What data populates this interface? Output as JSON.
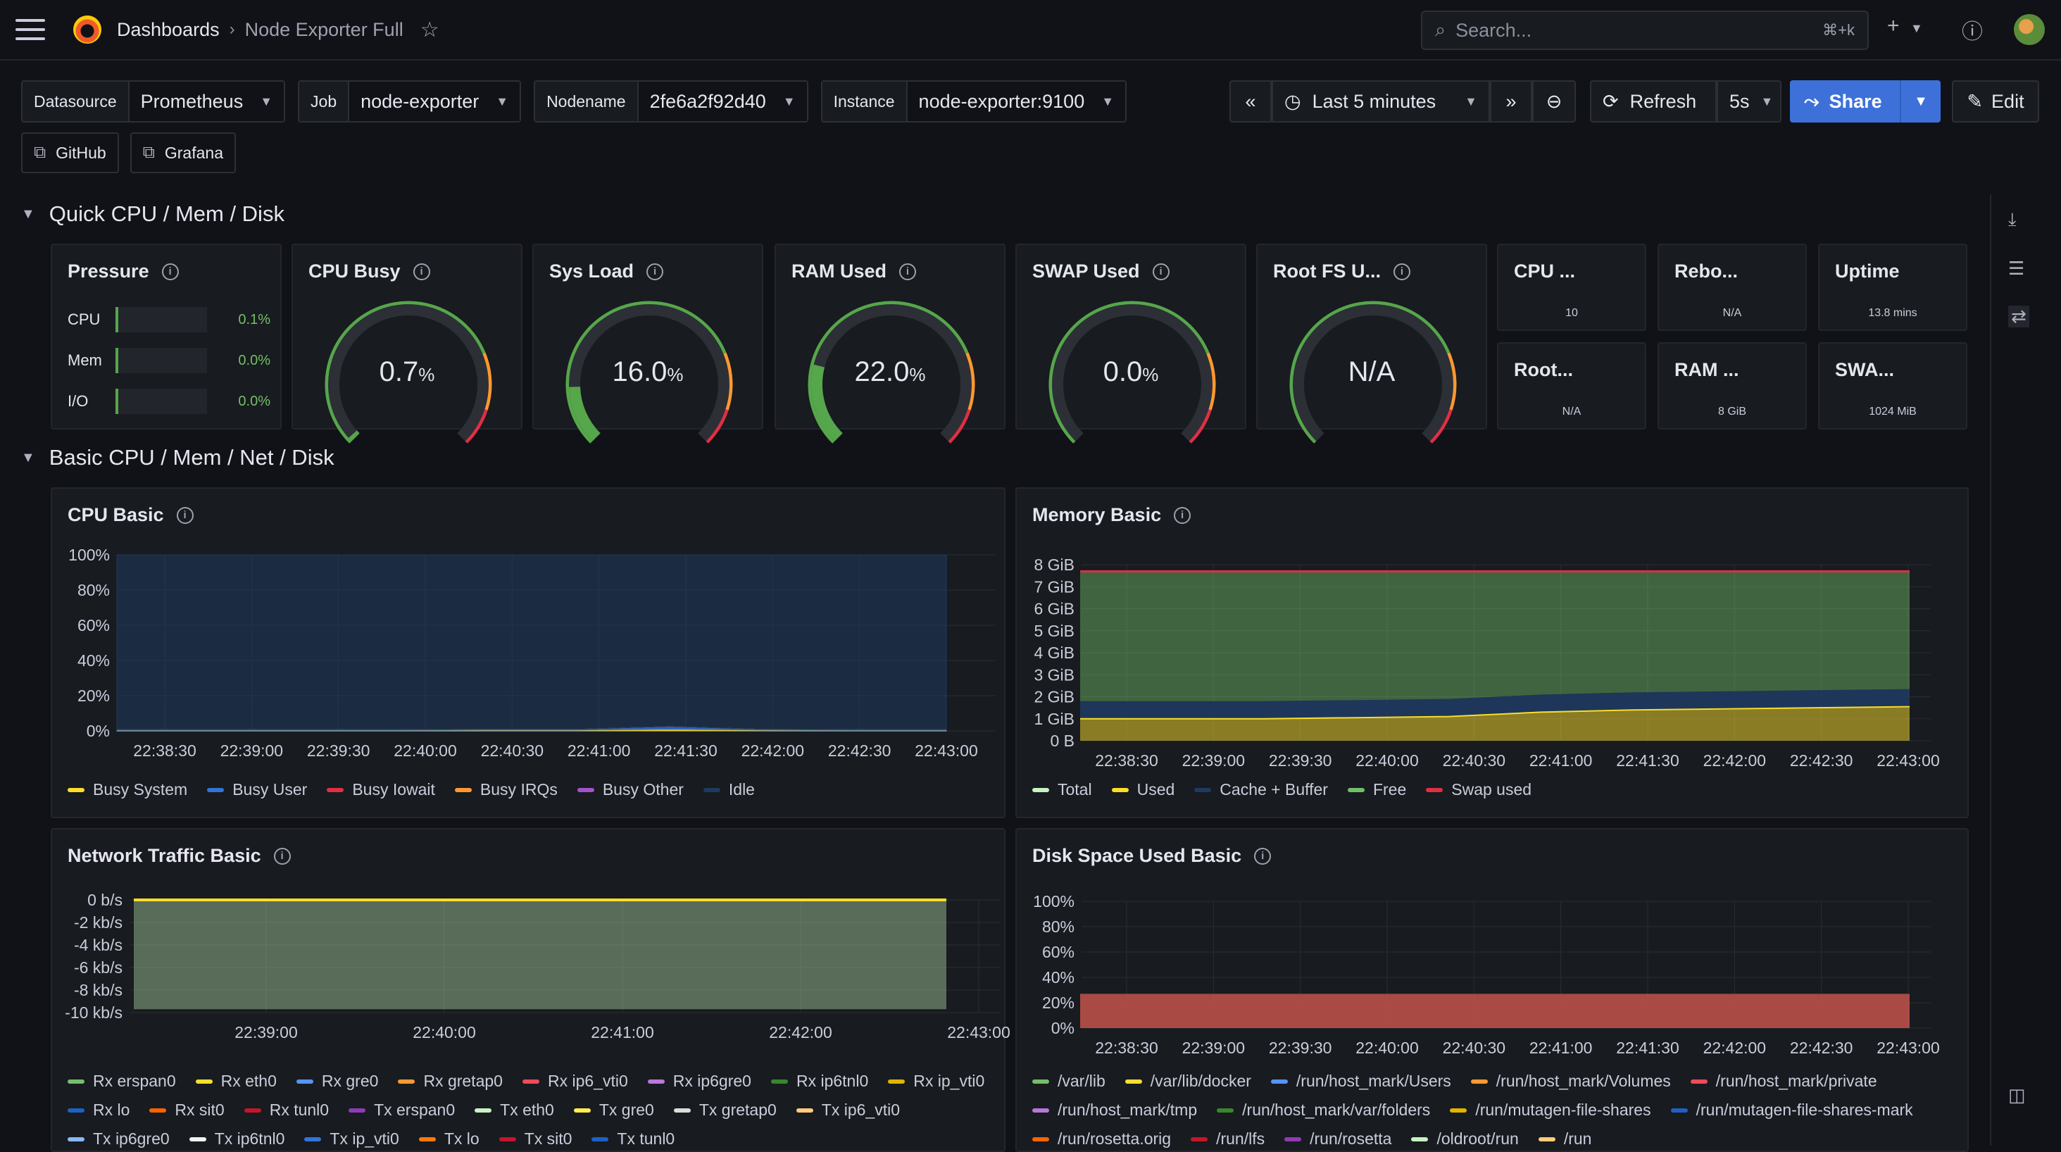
{
  "topbar": {
    "breadcrumb_root": "Dashboards",
    "breadcrumb_sep": "›",
    "breadcrumb_current": "Node Exporter Full",
    "search_placeholder": "Search...",
    "search_shortcut": "⌘+k"
  },
  "variables": [
    {
      "label": "Datasource",
      "value": "Prometheus"
    },
    {
      "label": "Job",
      "value": "node-exporter"
    },
    {
      "label": "Nodename",
      "value": "2fe6a2f92d40"
    },
    {
      "label": "Instance",
      "value": "node-exporter:9100"
    }
  ],
  "links": [
    {
      "label": "GitHub"
    },
    {
      "label": "Grafana"
    }
  ],
  "time": {
    "range_label": "Last 5 minutes",
    "refresh_label": "Refresh",
    "refresh_interval": "5s",
    "share_label": "Share",
    "edit_label": "Edit"
  },
  "rows": {
    "row1": "Quick CPU / Mem / Disk",
    "row2": "Basic CPU / Mem / Net / Disk"
  },
  "pressure": {
    "title": "Pressure",
    "items": [
      {
        "label": "CPU",
        "value": "0.1%"
      },
      {
        "label": "Mem",
        "value": "0.0%"
      },
      {
        "label": "I/O",
        "value": "0.0%"
      }
    ]
  },
  "gauges": [
    {
      "title": "CPU Busy",
      "value": "0.7",
      "unit": "%",
      "fraction": 0.007
    },
    {
      "title": "Sys Load",
      "value": "16.0",
      "unit": "%",
      "fraction": 0.16
    },
    {
      "title": "RAM Used",
      "value": "22.0",
      "unit": "%",
      "fraction": 0.22
    },
    {
      "title": "SWAP Used",
      "value": "0.0",
      "unit": "%",
      "fraction": 0.0
    },
    {
      "title": "Root FS U...",
      "value": "N/A",
      "unit": "",
      "fraction": 0.0
    }
  ],
  "stats": [
    {
      "title": "CPU ...",
      "value": "10"
    },
    {
      "title": "Rebo...",
      "value": "N/A"
    },
    {
      "title": "Uptime",
      "value": "13.8 mins"
    },
    {
      "title": "Root...",
      "value": "N/A"
    },
    {
      "title": "RAM ...",
      "value": "8 GiB"
    },
    {
      "title": "SWA...",
      "value": "1024 MiB"
    }
  ],
  "chart_data": [
    {
      "type": "area",
      "title": "CPU Basic",
      "x": [
        "22:38:30",
        "22:39:00",
        "22:39:30",
        "22:40:00",
        "22:40:30",
        "22:41:00",
        "22:41:30",
        "22:42:00",
        "22:42:30",
        "22:43:00"
      ],
      "yticks": [
        "0%",
        "20%",
        "40%",
        "60%",
        "80%",
        "100%"
      ],
      "ylim": [
        0,
        100
      ],
      "series": [
        {
          "name": "Busy System",
          "color": "#fade2a",
          "values": [
            0.3,
            0.3,
            0.3,
            0.3,
            0.4,
            0.4,
            1.0,
            0.4,
            0.3,
            0.3
          ]
        },
        {
          "name": "Busy User",
          "color": "#3274d9",
          "values": [
            0.4,
            0.4,
            0.4,
            0.4,
            0.5,
            0.5,
            1.5,
            0.5,
            0.4,
            0.4
          ]
        },
        {
          "name": "Busy Iowait",
          "color": "#e02f44",
          "values": [
            0,
            0,
            0,
            0,
            0,
            0,
            0,
            0,
            0,
            0
          ]
        },
        {
          "name": "Busy IRQs",
          "color": "#ff9830",
          "values": [
            0,
            0,
            0,
            0,
            0,
            0,
            0,
            0,
            0,
            0
          ]
        },
        {
          "name": "Busy Other",
          "color": "#a352cc",
          "values": [
            0,
            0,
            0,
            0,
            0,
            0,
            0,
            0,
            0,
            0
          ]
        },
        {
          "name": "Idle",
          "color": "#1f3a5f",
          "values": [
            99.3,
            99.3,
            99.3,
            99.3,
            99.1,
            99.1,
            97.5,
            99.1,
            99.3,
            99.3
          ]
        }
      ]
    },
    {
      "type": "area",
      "title": "Memory Basic",
      "x": [
        "22:38:30",
        "22:39:00",
        "22:39:30",
        "22:40:00",
        "22:40:30",
        "22:41:00",
        "22:41:30",
        "22:42:00",
        "22:42:30",
        "22:43:00"
      ],
      "yticks": [
        "0 B",
        "1 GiB",
        "2 GiB",
        "3 GiB",
        "4 GiB",
        "5 GiB",
        "6 GiB",
        "7 GiB",
        "8 GiB"
      ],
      "ylim": [
        0,
        8
      ],
      "series": [
        {
          "name": "Total",
          "color": "#c8f2c2",
          "values": [
            7.7,
            7.7,
            7.7,
            7.7,
            7.7,
            7.7,
            7.7,
            7.7,
            7.7,
            7.7
          ]
        },
        {
          "name": "Used",
          "color": "#fade2a",
          "values": [
            1.0,
            1.0,
            1.0,
            1.05,
            1.1,
            1.3,
            1.4,
            1.45,
            1.5,
            1.55
          ]
        },
        {
          "name": "Cache + Buffer",
          "color": "#1f3a5f",
          "values": [
            0.8,
            0.8,
            0.8,
            0.8,
            0.8,
            0.8,
            0.8,
            0.8,
            0.8,
            0.8
          ]
        },
        {
          "name": "Free",
          "color": "#73bf69",
          "values": [
            5.9,
            5.9,
            5.9,
            5.85,
            5.8,
            5.6,
            5.5,
            5.45,
            5.4,
            5.35
          ]
        },
        {
          "name": "Swap used",
          "color": "#e02f44",
          "values": [
            0,
            0,
            0,
            0,
            0,
            0,
            0,
            0,
            0,
            0
          ]
        }
      ]
    },
    {
      "type": "area",
      "title": "Network Traffic Basic",
      "x": [
        "22:39:00",
        "22:40:00",
        "22:41:00",
        "22:42:00",
        "22:43:00"
      ],
      "yticks": [
        "-10 kb/s",
        "-8 kb/s",
        "-6 kb/s",
        "-4 kb/s",
        "-2 kb/s",
        "0 b/s"
      ],
      "ylim": [
        -10,
        0
      ],
      "series_names": [
        "Rx erspan0",
        "Rx eth0",
        "Rx gre0",
        "Rx gretap0",
        "Rx ip6_vti0",
        "Rx ip6gre0",
        "Rx ip6tnl0",
        "Rx ip_vti0",
        "Rx lo",
        "Rx sit0",
        "Rx tunl0",
        "Tx erspan0",
        "Tx eth0",
        "Tx gre0",
        "Tx gretap0",
        "Tx ip6_vti0",
        "Tx ip6gre0",
        "Tx ip6tnl0",
        "Tx ip_vti0",
        "Tx lo",
        "Tx sit0",
        "Tx tunl0"
      ],
      "series_colors": [
        "#73bf69",
        "#fade2a",
        "#5794f2",
        "#ff9830",
        "#f2495c",
        "#b877d9",
        "#37872d",
        "#e0b400",
        "#1f60c4",
        "#fa6400",
        "#c4162a",
        "#8f3bb8",
        "#c8f2c2",
        "#ffee52",
        "#dcdcdc",
        "#ffcb7d",
        "#8ab8ff",
        "#f2f2f2",
        "#3274d9",
        "#ff780a",
        "#c4162a",
        "#1f60c4"
      ],
      "area_values": [
        -9.7,
        -9.7,
        -9.7,
        -9.7,
        -9.7
      ]
    },
    {
      "type": "area",
      "title": "Disk Space Used Basic",
      "x": [
        "22:38:30",
        "22:39:00",
        "22:39:30",
        "22:40:00",
        "22:40:30",
        "22:41:00",
        "22:41:30",
        "22:42:00",
        "22:42:30",
        "22:43:00"
      ],
      "yticks": [
        "0%",
        "20%",
        "40%",
        "60%",
        "80%",
        "100%"
      ],
      "ylim": [
        0,
        100
      ],
      "series_names": [
        "/var/lib",
        "/var/lib/docker",
        "/run/host_mark/Users",
        "/run/host_mark/Volumes",
        "/run/host_mark/private",
        "/run/host_mark/tmp",
        "/run/host_mark/var/folders",
        "/run/mutagen-file-shares",
        "/run/mutagen-file-shares-mark",
        "/run/rosetta.orig",
        "/run/lfs",
        "/run/rosetta",
        "/oldroot/run",
        "/run"
      ],
      "series_colors": [
        "#73bf69",
        "#fade2a",
        "#5794f2",
        "#ff9830",
        "#f2495c",
        "#b877d9",
        "#37872d",
        "#e0b400",
        "#1f60c4",
        "#fa6400",
        "#c4162a",
        "#8f3bb8",
        "#c8f2c2",
        "#ffcb7d"
      ],
      "area_values": [
        27,
        27,
        27,
        27,
        27,
        27,
        27,
        27,
        27,
        27
      ]
    }
  ]
}
